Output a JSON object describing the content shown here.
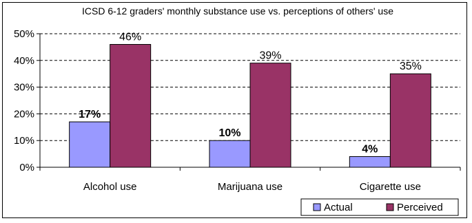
{
  "chart_data": {
    "type": "bar",
    "title": "ICSD 6-12 graders' monthly substance use vs. perceptions of others' use",
    "categories": [
      "Alcohol use",
      "Marijuana use",
      "Cigarette use"
    ],
    "series": [
      {
        "name": "Actual",
        "values": [
          17,
          10,
          4
        ],
        "labels": [
          "17%",
          "10%",
          "4%"
        ],
        "color": "#9999ff",
        "label_bold": true
      },
      {
        "name": "Perceived",
        "values": [
          46,
          39,
          35
        ],
        "labels": [
          "46%",
          "39%",
          "35%"
        ],
        "color": "#993366",
        "label_bold": false
      }
    ],
    "ylim": [
      0,
      50
    ],
    "yticks": [
      0,
      10,
      20,
      30,
      40,
      50
    ],
    "ytick_labels": [
      "0%",
      "10%",
      "20%",
      "30%",
      "40%",
      "50%"
    ],
    "grid": "horizontal dashed",
    "legend": "bottom-right",
    "xlabel": "",
    "ylabel": ""
  }
}
